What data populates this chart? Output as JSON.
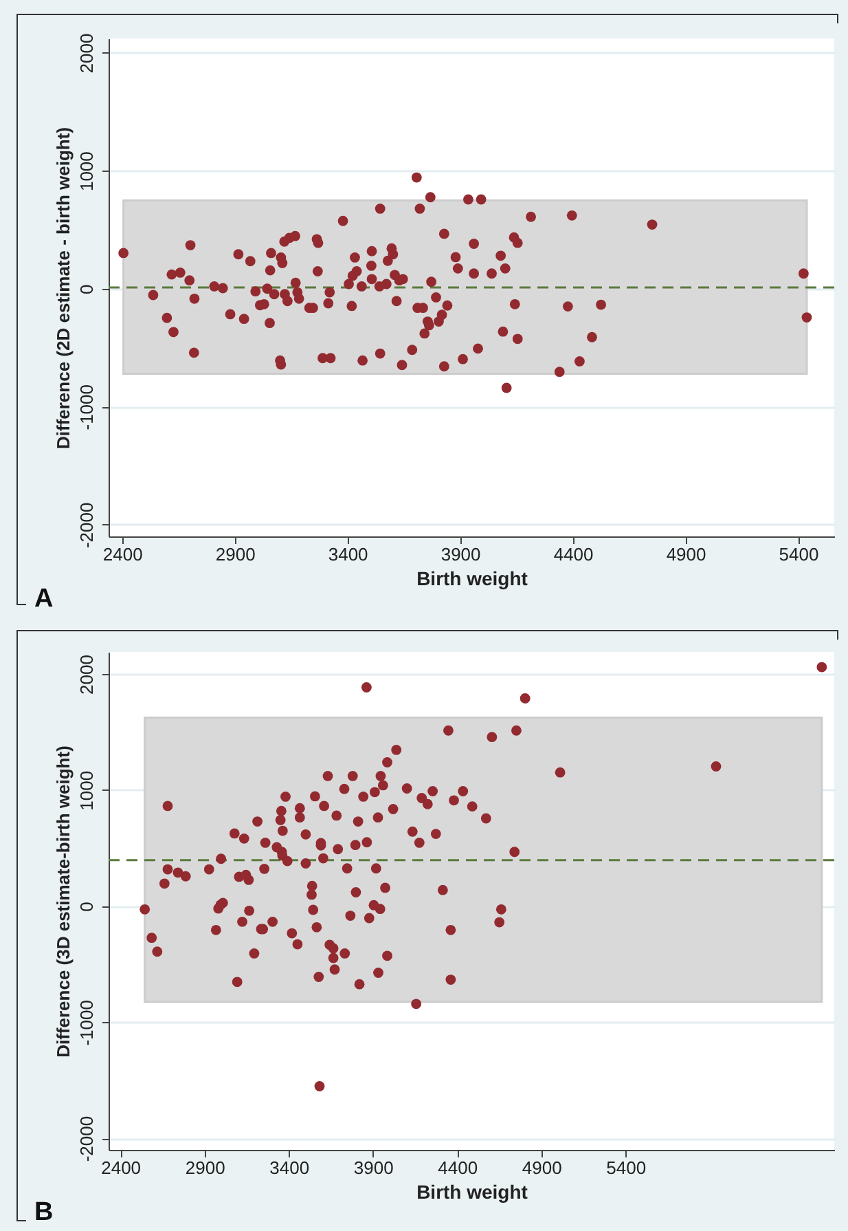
{
  "chart_data": [
    {
      "type": "scatter",
      "xlabel": "Birth weight",
      "ylabel": "Difference (2D estimate - birth weight)",
      "annotations": [
        "A"
      ],
      "xlim": [
        2340,
        5560
      ],
      "ylim": [
        -2100,
        2120
      ],
      "xticks": [
        2400,
        2900,
        3400,
        3900,
        4400,
        4900,
        5400
      ],
      "yticks": [
        -2000,
        -1000,
        0,
        1000,
        2000
      ],
      "grid": "y",
      "marker": "circle",
      "ref_lines": [
        {
          "axis": "y",
          "value": 10,
          "color": "#5b7a3c",
          "line_style": "dashed"
        }
      ],
      "bands": [
        {
          "axis": "y",
          "from": -721,
          "to": 748,
          "color": "#d9d9d9"
        }
      ],
      "series": [
        {
          "color": "#932a30",
          "x": [
            2406,
            2538,
            2599,
            2620,
            2628,
            2658,
            2699,
            2703,
            2721,
            2719,
            2809,
            2847,
            2880,
            2916,
            2941,
            2969,
            2992,
            3012,
            3030,
            3044,
            3055,
            3057,
            3061,
            3075,
            3105,
            3111,
            3101,
            3105,
            3120,
            3122,
            3134,
            3142,
            3168,
            3170,
            3178,
            3185,
            3231,
            3247,
            3264,
            3270,
            3268,
            3290,
            3315,
            3321,
            3325,
            3380,
            3406,
            3419,
            3423,
            3433,
            3441,
            3463,
            3467,
            3506,
            3508,
            3508,
            3545,
            3542,
            3545,
            3573,
            3579,
            3596,
            3602,
            3610,
            3618,
            3630,
            3642,
            3646,
            3687,
            3707,
            3711,
            3721,
            3735,
            3742,
            3756,
            3768,
            3762,
            3772,
            3793,
            3805,
            3819,
            3829,
            3829,
            3843,
            3880,
            3890,
            3912,
            3936,
            3961,
            3961,
            3979,
            3993,
            4040,
            4080,
            4090,
            4100,
            4106,
            4139,
            4155,
            4143,
            4155,
            4214,
            4341,
            4378,
            4396,
            4430,
            4485,
            4525,
            4752,
            5424,
            5438
          ],
          "values": [
            302,
            -54,
            -248,
            120,
            -368,
            136,
            70,
            368,
            -85,
            -543,
            19,
            4,
            -217,
            291,
            -256,
            233,
            -23,
            -140,
            -132,
            0,
            -291,
            155,
            302,
            -47,
            264,
            217,
            -609,
            -643,
            399,
            -47,
            -105,
            430,
            446,
            50,
            -31,
            -85,
            -163,
            -163,
            419,
            388,
            147,
            -589,
            -124,
            -31,
            -589,
            574,
            39,
            -147,
            109,
            264,
            147,
            19,
            -609,
            194,
            318,
            81,
            678,
            19,
            -550,
            39,
            236,
            341,
            291,
            116,
            -105,
            70,
            -647,
            81,
            -519,
            942,
            -163,
            678,
            -163,
            -380,
            -279,
            775,
            -310,
            58,
            -74,
            -279,
            -221,
            465,
            -659,
            -143,
            267,
            171,
            -597,
            756,
            380,
            128,
            -508,
            756,
            128,
            279,
            -364,
            171,
            -841,
            434,
            388,
            -132,
            -426,
            609,
            -705,
            -151,
            620,
            -616,
            -411,
            -136,
            543,
            128,
            -244
          ]
        }
      ]
    },
    {
      "type": "scatter",
      "xlabel": "Birth weight",
      "ylabel": "Difference (3D estimate-birth weight)",
      "annotations": [
        "B"
      ],
      "xlim": [
        2330,
        6640
      ],
      "ylim": [
        -2100,
        2190
      ],
      "xticks": [
        2400,
        2900,
        3400,
        3900,
        4400,
        4900,
        5400
      ],
      "yticks": [
        -2000,
        -1000,
        0,
        1000,
        2000
      ],
      "grid": "y",
      "marker": "circle",
      "ref_lines": [
        {
          "axis": "y",
          "value": 396,
          "color": "#5b7a3c",
          "line_style": "dashed"
        }
      ],
      "bands": [
        {
          "axis": "y",
          "from": -824,
          "to": 1624,
          "color": "#d9d9d9"
        }
      ],
      "series": [
        {
          "color": "#932a30",
          "x": [
            2545,
            2586,
            2619,
            2662,
            2681,
            2681,
            2742,
            2788,
            2927,
            2968,
            2982,
            2996,
            3009,
            2998,
            3078,
            3094,
            3105,
            3124,
            3135,
            3146,
            3165,
            3162,
            3195,
            3214,
            3236,
            3247,
            3255,
            3261,
            3304,
            3329,
            3351,
            3356,
            3364,
            3359,
            3362,
            3381,
            3392,
            3419,
            3452,
            3466,
            3466,
            3501,
            3501,
            3539,
            3536,
            3545,
            3556,
            3566,
            3578,
            3583,
            3591,
            3591,
            3605,
            3610,
            3632,
            3643,
            3665,
            3665,
            3673,
            3684,
            3692,
            3730,
            3733,
            3747,
            3766,
            3780,
            3796,
            3799,
            3812,
            3820,
            3843,
            3862,
            3864,
            3878,
            3911,
            3905,
            3919,
            3930,
            3932,
            3943,
            3946,
            3960,
            3973,
            3985,
            3985,
            4020,
            4039,
            4102,
            4135,
            4157,
            4176,
            4190,
            4225,
            4255,
            4274,
            4315,
            4348,
            4362,
            4362,
            4381,
            4435,
            4490,
            4572,
            4607,
            4662,
            4651,
            4741,
            4752,
            4804,
            5012,
            5938,
            6566
          ],
          "values": [
            -28,
            -273,
            -392,
            194,
            863,
            317,
            289,
            257,
            317,
            -206,
            -20,
            12,
            28,
            408,
            626,
            -653,
            253,
            -135,
            582,
            269,
            -40,
            226,
            -408,
            729,
            -198,
            -198,
            321,
            546,
            -135,
            507,
            741,
            820,
            649,
            467,
            436,
            943,
            388,
            -234,
            -329,
            844,
            764,
            618,
            368,
            174,
            99,
            -32,
            946,
            -182,
            -610,
            -1552,
            543,
            523,
            412,
            863,
            1121,
            -333,
            -364,
            -447,
            -546,
            780,
            491,
            1010,
            -408,
            325,
            -83,
            1121,
            527,
            119,
            729,
            -673,
            943,
            1885,
            550,
            -103,
            982,
            8,
            325,
            764,
            -574,
            -24,
            1121,
            1041,
            158,
            1239,
            -428,
            836,
            1346,
            1014,
            642,
            -843,
            546,
            931,
            879,
            990,
            622,
            139,
            1513,
            -206,
            -634,
            911,
            990,
            859,
            756,
            1457,
            -28,
            -139,
            467,
            1513,
            1790,
            1152,
            1204,
            2059
          ]
        }
      ]
    }
  ]
}
